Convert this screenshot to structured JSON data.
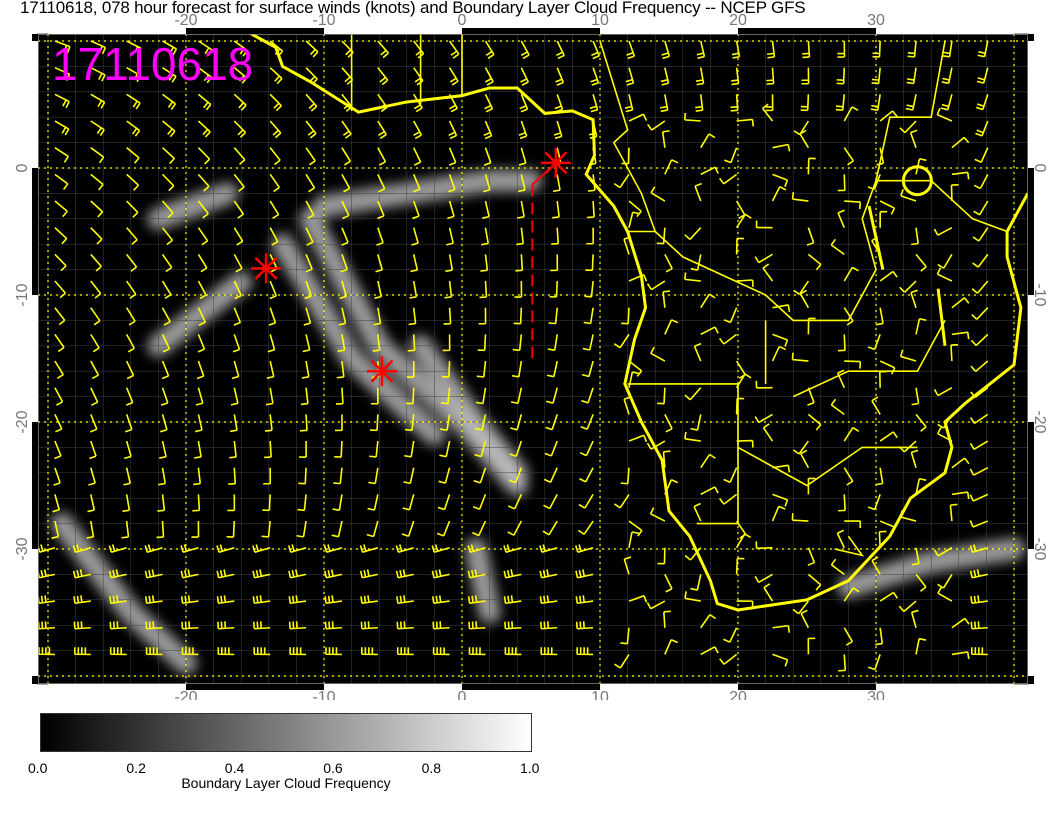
{
  "title": "17110618, 078 hour forecast for surface winds (knots) and Boundary Layer Cloud Frequency -- NCEP GFS",
  "stamp": "17110618",
  "map": {
    "lon_range": [
      -30.6,
      41
    ],
    "lat_range": [
      -40.5,
      10.5
    ],
    "lon_ticks": [
      "-20",
      "-10",
      "0",
      "10",
      "20",
      "30"
    ],
    "lon_tick_values": [
      -20,
      -10,
      0,
      10,
      20,
      30
    ],
    "lat_ticks": [
      "0",
      "-10",
      "-20",
      "-30"
    ],
    "lat_tick_values": [
      0,
      -10,
      -20,
      -30
    ],
    "background": "#000000",
    "coast_color": "#ffff00",
    "barb_color": "#ffff00",
    "grid_color": "#ffff00",
    "markers": [
      {
        "lon": -14.2,
        "lat": -7.9
      },
      {
        "lon": -5.8,
        "lat": -16.0
      },
      {
        "lon": 6.8,
        "lat": 0.4
      }
    ],
    "marker_color": "#ff0000",
    "track": {
      "lon": 5.1,
      "lat_start": -1.3,
      "lat_end": -15.1
    }
  },
  "colorbar": {
    "label": "Boundary Layer Cloud Frequency",
    "ticks": [
      "0.0",
      "0.2",
      "0.4",
      "0.6",
      "0.8",
      "1.0"
    ],
    "range": [
      0,
      1
    ]
  }
}
